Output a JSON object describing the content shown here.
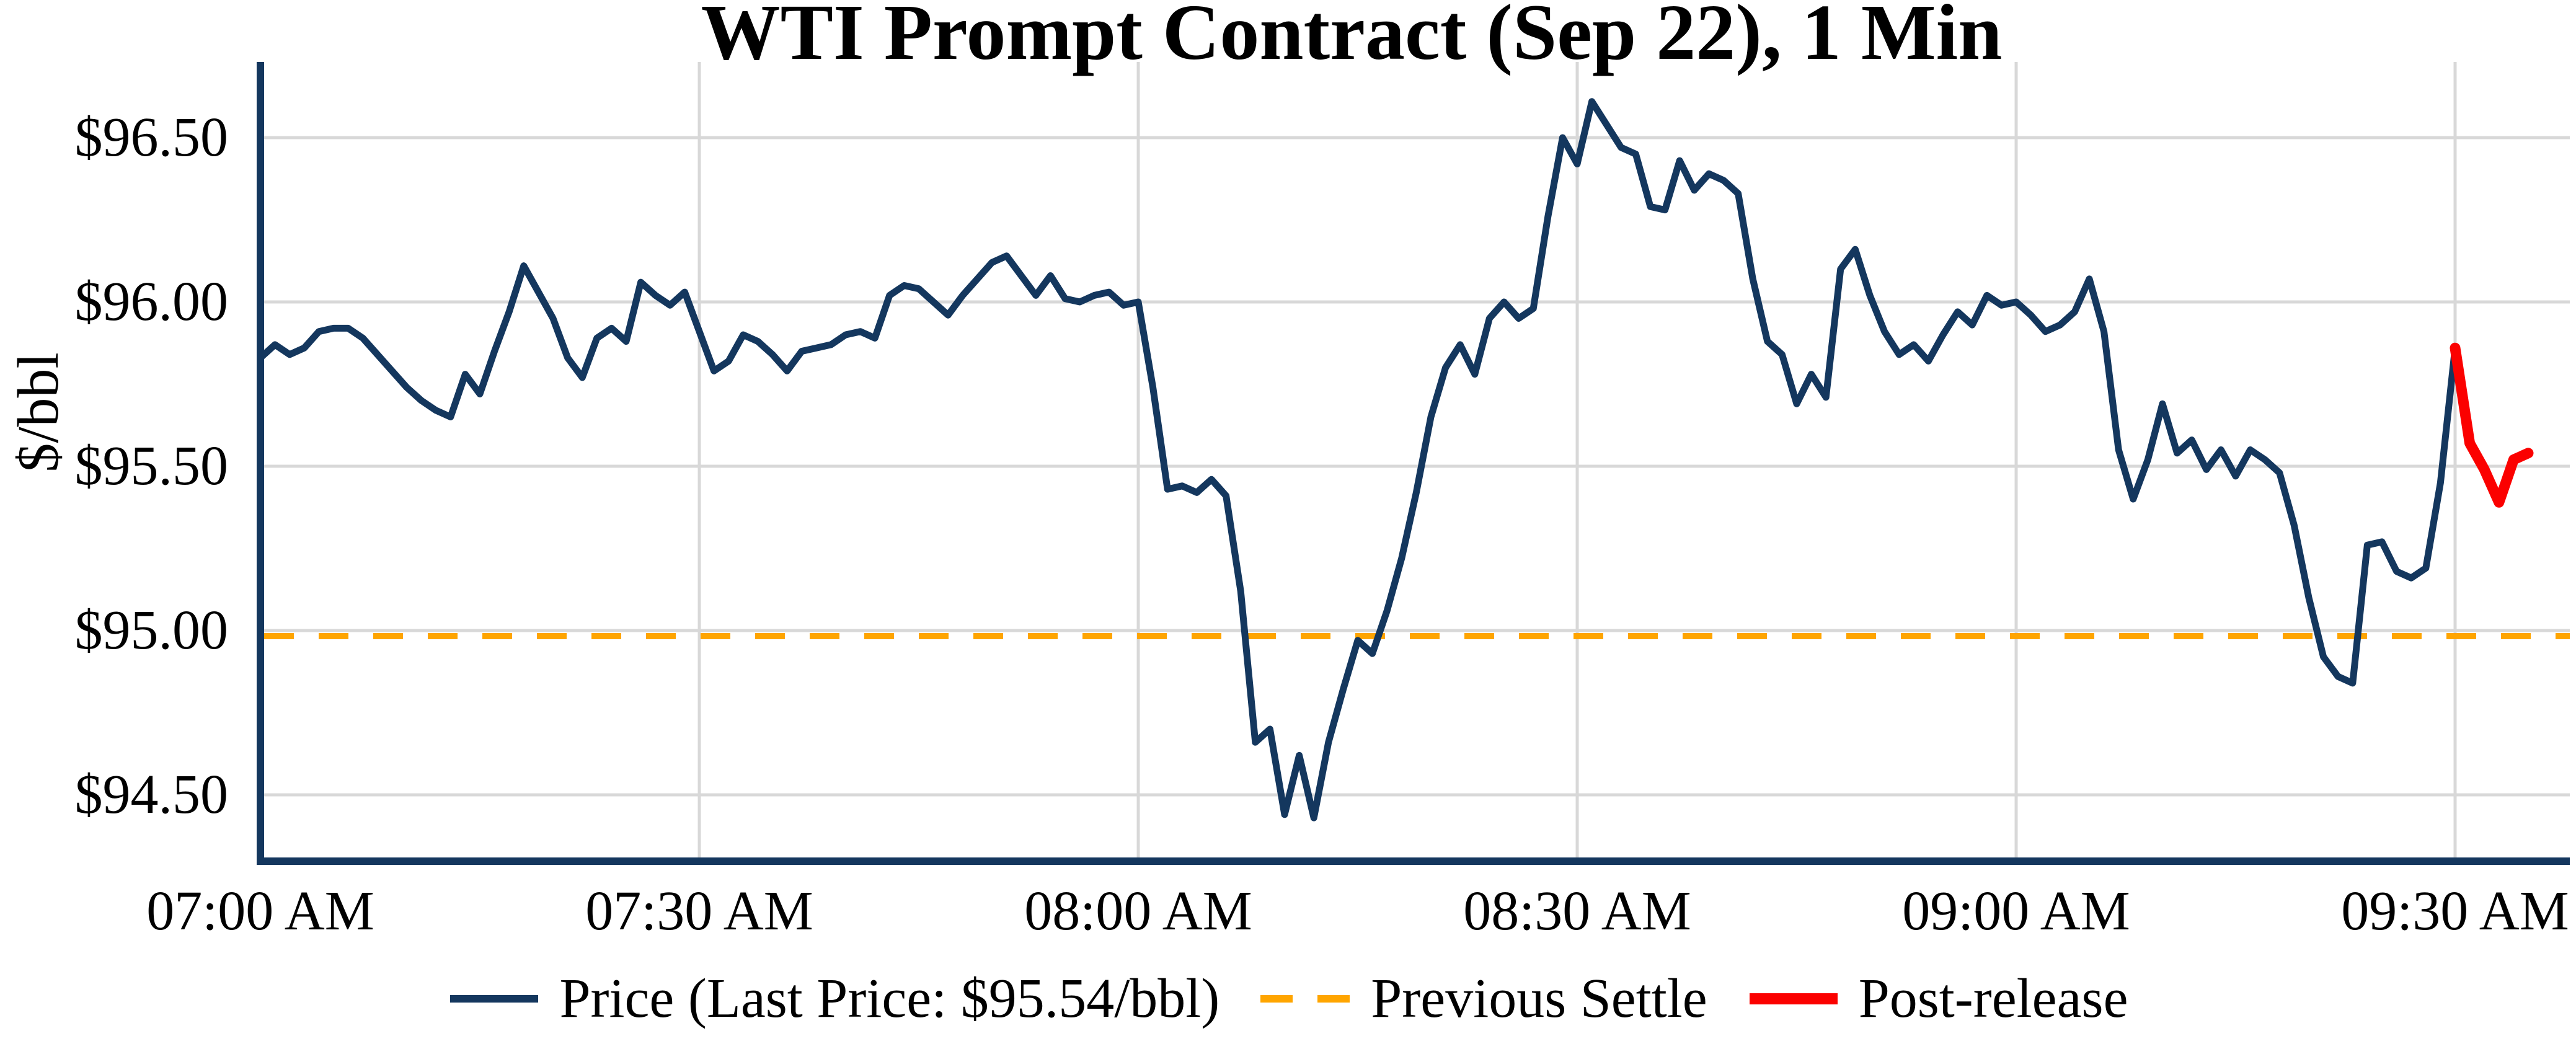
{
  "chart_data": {
    "type": "line",
    "title": "WTI Prompt Contract (Sep 22), 1 Min",
    "ylabel": "$/bbl",
    "x_axis": {
      "tick_labels": [
        "07:00 AM",
        "07:30 AM",
        "08:00 AM",
        "08:30 AM",
        "09:00 AM",
        "09:30 AM"
      ],
      "tick_minutes": [
        0,
        30,
        60,
        90,
        120,
        150
      ],
      "unit": "minutes after 07:00 AM"
    },
    "y_axis": {
      "tick_labels": [
        "$96.50",
        "$96.00",
        "$95.50",
        "$95.00",
        "$94.50"
      ],
      "tick_values": [
        96.5,
        96.0,
        95.5,
        95.0,
        94.5
      ],
      "ylim": [
        94.3,
        96.73
      ]
    },
    "xlim_minutes": [
      0,
      157.8
    ],
    "grid": true,
    "previous_settle_value": 95.0,
    "last_price": "$95.54/bbl",
    "colors": {
      "price": "#14375e",
      "settle": "#ffa500",
      "post": "#fb0100",
      "grid": "#d8d8d8",
      "spine": "#14375e",
      "text": "#000000"
    },
    "legend": {
      "position": "bottom-center",
      "entries": [
        {
          "label": "Price (Last Price: $95.54/bbl)",
          "color": "#14375e",
          "style": "solid"
        },
        {
          "label": "Previous Settle",
          "color": "#ffa500",
          "style": "dashed"
        },
        {
          "label": "Post-release",
          "color": "#fb0100",
          "style": "solid-thick"
        }
      ]
    },
    "series": [
      {
        "name": "Price",
        "color": "#14375e",
        "width": 11,
        "t_start_minute": 0,
        "step_minutes": 1,
        "values": [
          95.83,
          95.87,
          95.84,
          95.86,
          95.91,
          95.92,
          95.92,
          95.89,
          95.84,
          95.79,
          95.74,
          95.7,
          95.67,
          95.65,
          95.78,
          95.72,
          95.85,
          95.97,
          96.11,
          96.03,
          95.95,
          95.83,
          95.77,
          95.89,
          95.92,
          95.88,
          96.06,
          96.02,
          95.99,
          96.03,
          95.91,
          95.79,
          95.82,
          95.9,
          95.88,
          95.84,
          95.79,
          95.85,
          95.86,
          95.87,
          95.9,
          95.91,
          95.89,
          96.02,
          96.05,
          96.04,
          96.0,
          95.96,
          96.02,
          96.07,
          96.12,
          96.14,
          96.08,
          96.02,
          96.08,
          96.01,
          96.0,
          96.02,
          96.03,
          95.99,
          96.0,
          95.74,
          95.43,
          95.44,
          95.42,
          95.46,
          95.41,
          95.12,
          94.66,
          94.7,
          94.44,
          94.62,
          94.43,
          94.66,
          94.82,
          94.97,
          94.93,
          95.06,
          95.22,
          95.42,
          95.65,
          95.8,
          95.87,
          95.78,
          95.95,
          96.0,
          95.95,
          95.98,
          96.26,
          96.5,
          96.42,
          96.61,
          96.54,
          96.47,
          96.45,
          96.29,
          96.28,
          96.43,
          96.34,
          96.39,
          96.37,
          96.33,
          96.07,
          95.88,
          95.84,
          95.69,
          95.78,
          95.71,
          96.1,
          96.16,
          96.02,
          95.91,
          95.84,
          95.87,
          95.82,
          95.9,
          95.97,
          95.93,
          96.02,
          95.99,
          96.0,
          95.96,
          95.91,
          95.93,
          95.97,
          96.07,
          95.91,
          95.55,
          95.4,
          95.52,
          95.69,
          95.54,
          95.58,
          95.49,
          95.55,
          95.47,
          95.55,
          95.52,
          95.48,
          95.32,
          95.1,
          94.92,
          94.86,
          94.84,
          95.26,
          95.27,
          95.18,
          95.16,
          95.19,
          95.45,
          95.86
        ]
      },
      {
        "name": "Post-release",
        "color": "#fb0100",
        "width": 17,
        "t_start_minute": 150,
        "step_minutes": 1,
        "values": [
          95.86,
          95.57,
          95.49,
          95.39,
          95.52,
          95.54
        ]
      }
    ]
  }
}
